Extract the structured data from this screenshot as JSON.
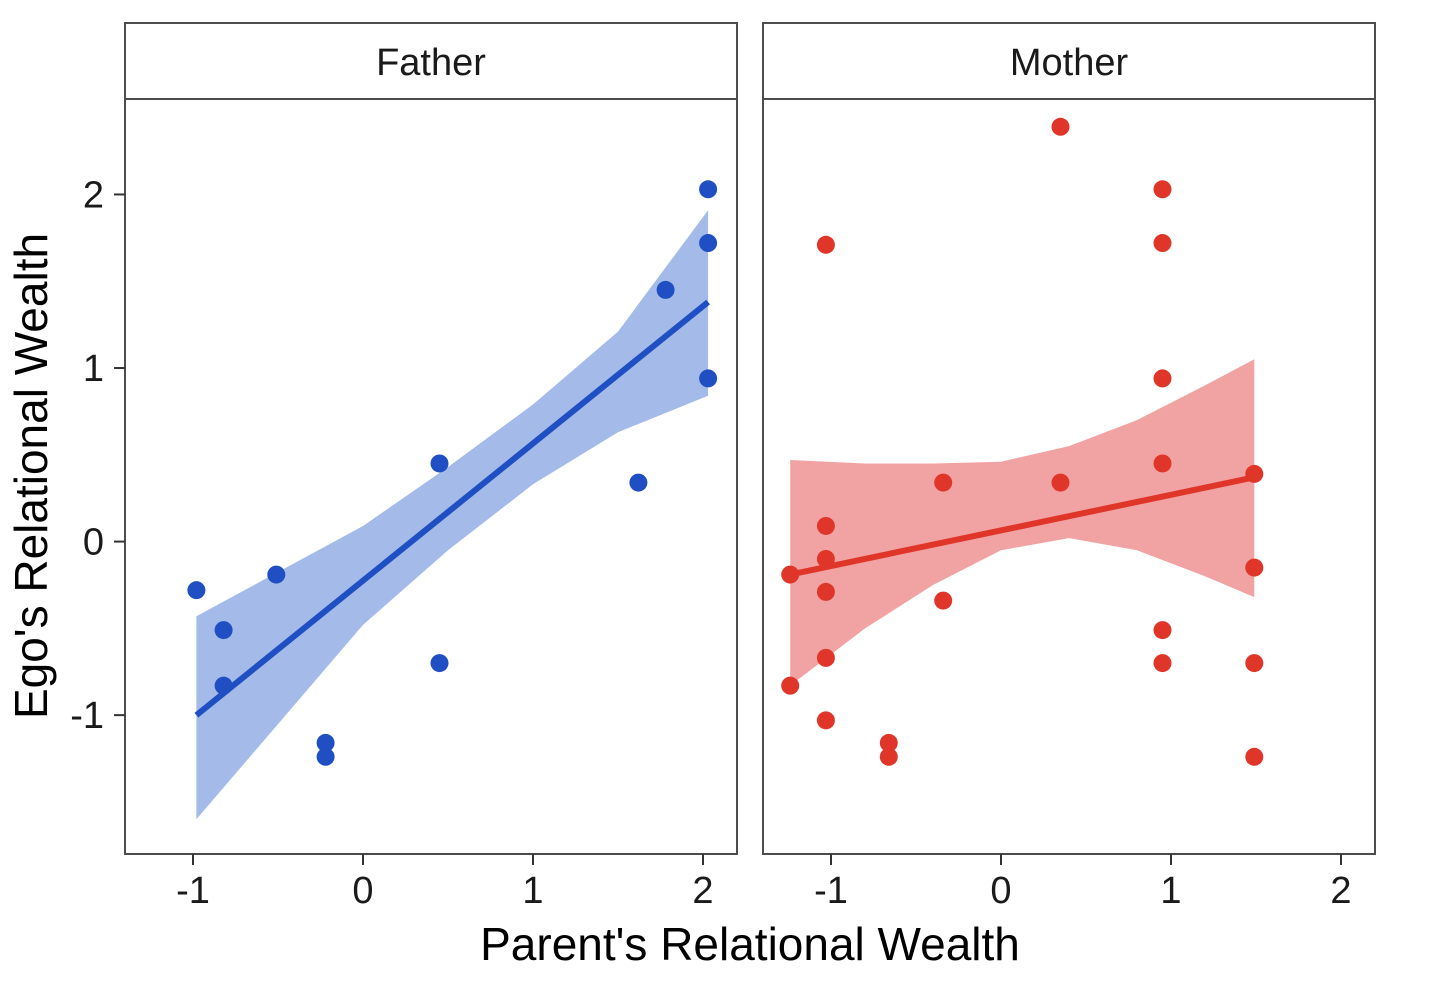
{
  "chart_data": {
    "type": "scatter",
    "xlabel": "Parent's Relational Wealth",
    "ylabel": "Ego's Relational Wealth",
    "x_ticks": [
      -1,
      0,
      1,
      2
    ],
    "y_ticks": [
      -1,
      0,
      1,
      2
    ],
    "xlim": [
      -1.4,
      2.2
    ],
    "ylim": [
      -1.8,
      2.55
    ],
    "grid": false,
    "legend": "none",
    "panels": [
      {
        "name": "Father",
        "color": "#1f4fc2",
        "band_color": "#a4bbea",
        "points": [
          {
            "x": -0.98,
            "y": -0.28
          },
          {
            "x": -0.82,
            "y": -0.51
          },
          {
            "x": -0.82,
            "y": -0.83
          },
          {
            "x": -0.51,
            "y": -0.19
          },
          {
            "x": -0.22,
            "y": -1.16
          },
          {
            "x": -0.22,
            "y": -1.24
          },
          {
            "x": 0.45,
            "y": 0.45
          },
          {
            "x": 0.45,
            "y": -0.7
          },
          {
            "x": 1.62,
            "y": 0.34
          },
          {
            "x": 1.78,
            "y": 1.45
          },
          {
            "x": 2.03,
            "y": 2.03
          },
          {
            "x": 2.03,
            "y": 1.72
          },
          {
            "x": 2.03,
            "y": 0.94
          }
        ],
        "fit": {
          "x": [
            -0.98,
            2.03
          ],
          "y": [
            -1.0,
            1.38
          ]
        },
        "band": {
          "x": [
            -0.98,
            0.0,
            0.5,
            1.0,
            1.5,
            2.03
          ],
          "lower": [
            -1.6,
            -0.48,
            -0.05,
            0.33,
            0.63,
            0.84
          ],
          "upper": [
            -0.43,
            0.09,
            0.43,
            0.79,
            1.21,
            1.91
          ]
        }
      },
      {
        "name": "Mother",
        "color": "#e0362a",
        "band_color": "#f1a3a3",
        "points": [
          {
            "x": -1.24,
            "y": -0.19
          },
          {
            "x": -1.24,
            "y": -0.83
          },
          {
            "x": -1.03,
            "y": 1.71
          },
          {
            "x": -1.03,
            "y": 0.09
          },
          {
            "x": -1.03,
            "y": -0.1
          },
          {
            "x": -1.03,
            "y": -0.29
          },
          {
            "x": -1.03,
            "y": -0.67
          },
          {
            "x": -1.03,
            "y": -1.03
          },
          {
            "x": -0.66,
            "y": -1.16
          },
          {
            "x": -0.66,
            "y": -1.24
          },
          {
            "x": -0.34,
            "y": 0.34
          },
          {
            "x": -0.34,
            "y": -0.34
          },
          {
            "x": 0.35,
            "y": 2.39
          },
          {
            "x": 0.35,
            "y": 0.34
          },
          {
            "x": 0.95,
            "y": 2.03
          },
          {
            "x": 0.95,
            "y": 1.72
          },
          {
            "x": 0.95,
            "y": 0.94
          },
          {
            "x": 0.95,
            "y": 0.45
          },
          {
            "x": 0.95,
            "y": -0.51
          },
          {
            "x": 0.95,
            "y": -0.7
          },
          {
            "x": 1.49,
            "y": 0.39
          },
          {
            "x": 1.49,
            "y": -0.15
          },
          {
            "x": 1.49,
            "y": -0.7
          },
          {
            "x": 1.49,
            "y": -1.24
          }
        ],
        "fit": {
          "x": [
            -1.24,
            1.49
          ],
          "y": [
            -0.19,
            0.37
          ]
        },
        "band": {
          "x": [
            -1.24,
            -0.8,
            -0.4,
            0.0,
            0.4,
            0.8,
            1.2,
            1.49
          ],
          "lower": [
            -0.83,
            -0.5,
            -0.25,
            -0.05,
            0.02,
            -0.05,
            -0.2,
            -0.32
          ],
          "upper": [
            0.47,
            0.45,
            0.45,
            0.46,
            0.55,
            0.7,
            0.9,
            1.05
          ]
        }
      }
    ]
  }
}
